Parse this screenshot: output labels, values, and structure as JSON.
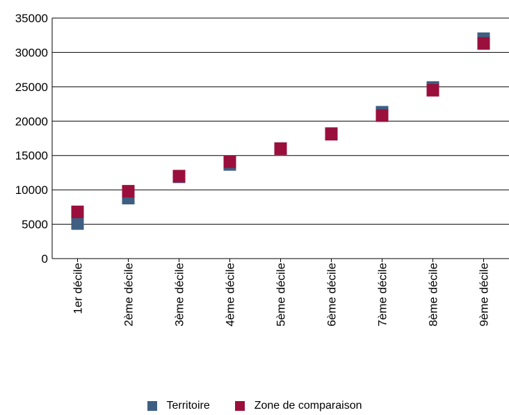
{
  "chart_data": {
    "type": "scatter",
    "categories": [
      "1er décile",
      "2ème décile",
      "3ème décile",
      "4ème décile",
      "5ème décile",
      "6ème décile",
      "7ème décile",
      "8ème décile",
      "9ème décile"
    ],
    "series": [
      {
        "name": "Territoire",
        "color": "#3e5f82",
        "values": [
          5100,
          8800,
          11900,
          13700,
          16000,
          18200,
          21300,
          24900,
          32000
        ]
      },
      {
        "name": "Zone de comparaison",
        "color": "#9a0f3c",
        "values": [
          6800,
          9800,
          12000,
          14100,
          16000,
          18100,
          20800,
          24500,
          31300
        ]
      }
    ],
    "ylim": [
      0,
      35000
    ],
    "yticks": [
      "0",
      "5000",
      "10000",
      "15000",
      "20000",
      "25000",
      "30000",
      "35000"
    ],
    "grid": true,
    "legend_position": "bottom"
  }
}
